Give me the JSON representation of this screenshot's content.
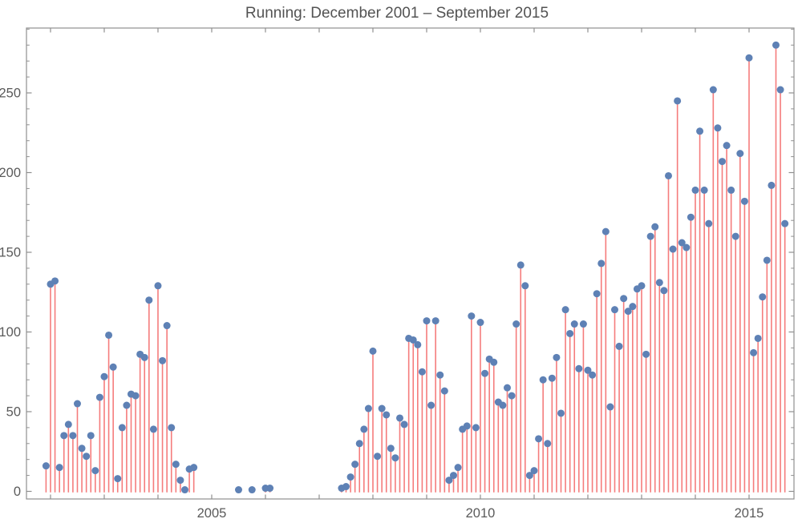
{
  "title": "Running: December 2001 – September 2015",
  "colors": {
    "background": "#ffffff",
    "stem": "#f57c7c",
    "point": "#5e81b5",
    "frame": "#8f8f8f",
    "tick": "#8f8f8f",
    "tick_label": "#5a5a5a",
    "title": "#535353"
  },
  "axes": {
    "y_major_ticks": [
      0,
      50,
      100,
      150,
      200,
      250
    ],
    "y_minor_step": 10,
    "y_max_minor": 290,
    "x_year_labels": [
      {
        "label": "2005",
        "month_index": 37
      },
      {
        "label": "2010",
        "month_index": 97
      },
      {
        "label": "2015",
        "month_index": 157
      }
    ]
  },
  "chart_data": {
    "type": "stem",
    "title": "Running: December 2001 – September 2015",
    "xlabel": "",
    "ylabel": "",
    "ylim": [
      0,
      290
    ],
    "grid": false,
    "legend": "none",
    "start_month": "2001-12",
    "end_month": "2015-09",
    "months_note": "values[i] is month i after 2001-12; null = no data shown",
    "values": [
      16,
      130,
      132,
      15,
      35,
      42,
      35,
      55,
      27,
      22,
      35,
      13,
      59,
      72,
      98,
      78,
      8,
      40,
      54,
      61,
      60,
      86,
      84,
      120,
      39,
      129,
      82,
      104,
      40,
      17,
      7,
      1,
      14,
      15,
      null,
      null,
      null,
      null,
      null,
      null,
      null,
      null,
      null,
      1,
      null,
      null,
      1,
      null,
      null,
      2,
      2,
      null,
      null,
      null,
      null,
      null,
      null,
      null,
      null,
      null,
      null,
      null,
      null,
      null,
      null,
      null,
      2,
      3,
      9,
      17,
      30,
      39,
      52,
      88,
      22,
      52,
      48,
      27,
      21,
      46,
      42,
      96,
      95,
      92,
      75,
      107,
      54,
      107,
      73,
      63,
      7,
      10,
      15,
      39,
      41,
      110,
      40,
      106,
      74,
      83,
      81,
      56,
      54,
      65,
      60,
      105,
      142,
      129,
      10,
      13,
      33,
      70,
      30,
      71,
      84,
      49,
      114,
      99,
      105,
      77,
      105,
      76,
      73,
      124,
      143,
      163,
      53,
      114,
      91,
      121,
      113,
      116,
      127,
      129,
      86,
      160,
      166,
      131,
      126,
      198,
      152,
      245,
      156,
      153,
      172,
      189,
      226,
      189,
      168,
      252,
      228,
      207,
      217,
      189,
      160,
      212,
      182,
      272,
      87,
      96,
      122,
      145,
      192,
      280,
      252,
      168
    ]
  }
}
